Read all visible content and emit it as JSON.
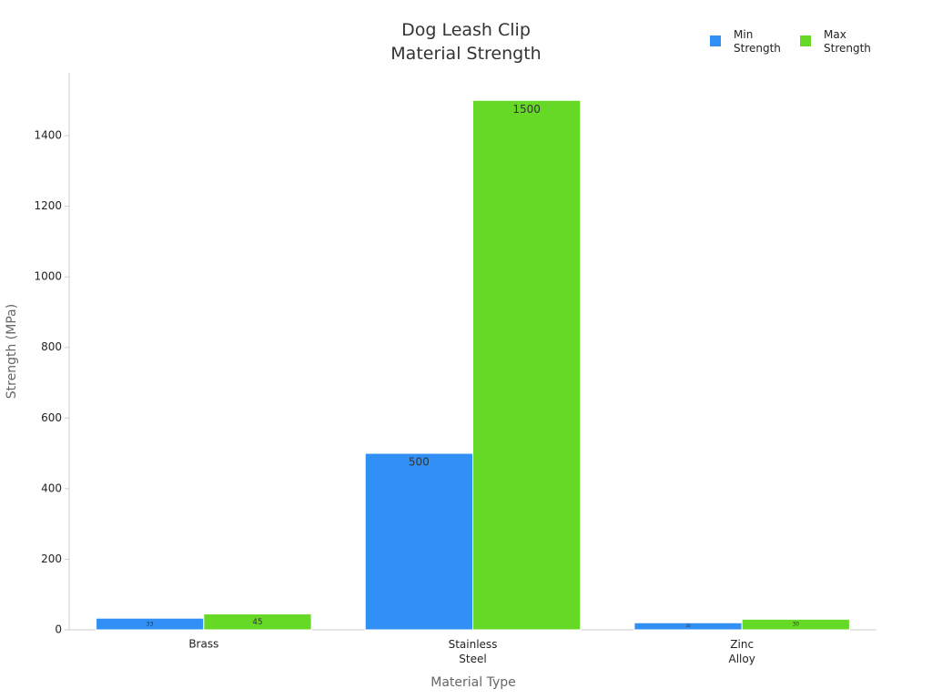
{
  "chart_data": {
    "type": "bar",
    "title": "Dog Leash Clip\nMaterial Strength",
    "x_label": "Material Type",
    "y_label": "Strength (MPa)",
    "categories": [
      "Brass",
      "Stainless\nSteel",
      "Zinc\nAlloy"
    ],
    "series": [
      {
        "name": "Min\nStrength",
        "color": "#3090f5",
        "values": [
          33,
          500,
          20
        ]
      },
      {
        "name": "Max\nStrength",
        "color": "#66d926",
        "values": [
          45,
          1500,
          30
        ]
      }
    ],
    "ylim": [
      0,
      1578
    ],
    "yticks": [
      0,
      200,
      400,
      600,
      800,
      1000,
      1200,
      1400
    ],
    "legend": "upper right",
    "grid": false
  }
}
